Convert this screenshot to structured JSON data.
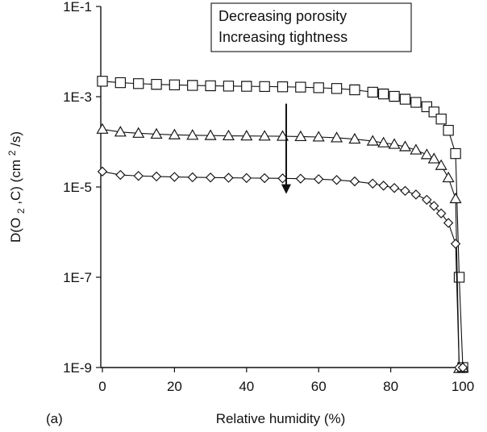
{
  "chart_data": {
    "type": "line",
    "panel_label": "(a)",
    "xlabel": "Relative humidity (%)",
    "ylabel": {
      "base": "D(O",
      "sub": "2",
      "mid": ",C) (cm",
      "sup": "2",
      "end": "/s)"
    },
    "xlim": [
      0,
      100
    ],
    "ylim": [
      1e-09,
      0.1
    ],
    "y_scale": "log",
    "x_ticks": [
      "0",
      "20",
      "40",
      "60",
      "80",
      "100"
    ],
    "x_tick_values": [
      0,
      20,
      40,
      60,
      80,
      100
    ],
    "y_ticks": [
      "1E-9",
      "1E-7",
      "1E-5",
      "1E-3",
      "1E-1"
    ],
    "y_tick_values": [
      1e-09,
      1e-07,
      1e-05,
      0.001,
      0.1
    ],
    "annotation": {
      "lines": [
        "Decreasing porosity",
        "Increasing tightness"
      ],
      "arrow_x": 51,
      "arrow_from": 0.0007,
      "arrow_to": 7e-06
    },
    "series": [
      {
        "marker": "square",
        "x": [
          0,
          5,
          10,
          15,
          20,
          25,
          30,
          35,
          40,
          45,
          50,
          55,
          60,
          65,
          70,
          75,
          78,
          81,
          84,
          87,
          90,
          92,
          94,
          96,
          98,
          99,
          100
        ],
        "y": [
          0.0022,
          0.00205,
          0.00195,
          0.00188,
          0.00183,
          0.00178,
          0.00175,
          0.00172,
          0.0017,
          0.00168,
          0.00166,
          0.00163,
          0.00158,
          0.00152,
          0.00142,
          0.00126,
          0.00115,
          0.00102,
          0.00088,
          0.00075,
          0.0006,
          0.00046,
          0.00032,
          0.00018,
          5.5e-05,
          1e-07,
          1e-09
        ]
      },
      {
        "marker": "triangle",
        "x": [
          0,
          5,
          10,
          15,
          20,
          25,
          30,
          35,
          40,
          45,
          50,
          55,
          60,
          65,
          70,
          75,
          78,
          81,
          84,
          87,
          90,
          92,
          94,
          96,
          98,
          99,
          100
        ],
        "y": [
          0.00019,
          0.000165,
          0.000155,
          0.000148,
          0.000143,
          0.00014,
          0.000138,
          0.000136,
          0.000135,
          0.000134,
          0.000133,
          0.000131,
          0.000128,
          0.000123,
          0.000115,
          0.000104,
          9.5e-05,
          8.8e-05,
          7.8e-05,
          6.6e-05,
          5.2e-05,
          4.2e-05,
          3e-05,
          1.6e-05,
          5.5e-06,
          9.5e-10,
          1e-09
        ]
      },
      {
        "marker": "diamond",
        "x": [
          0,
          5,
          10,
          15,
          20,
          25,
          30,
          35,
          40,
          45,
          50,
          55,
          60,
          65,
          70,
          75,
          78,
          81,
          84,
          87,
          90,
          92,
          94,
          96,
          98,
          99,
          100
        ],
        "y": [
          2.2e-05,
          1.85e-05,
          1.76e-05,
          1.71e-05,
          1.67e-05,
          1.64e-05,
          1.62e-05,
          1.6e-05,
          1.58e-05,
          1.57e-05,
          1.55e-05,
          1.53e-05,
          1.49e-05,
          1.43e-05,
          1.33e-05,
          1.19e-05,
          1.07e-05,
          9.5e-06,
          8.2e-06,
          6.8e-06,
          5.2e-06,
          3.8e-06,
          2.6e-06,
          1.6e-06,
          5.5e-07,
          1e-09,
          1e-09
        ]
      }
    ]
  }
}
